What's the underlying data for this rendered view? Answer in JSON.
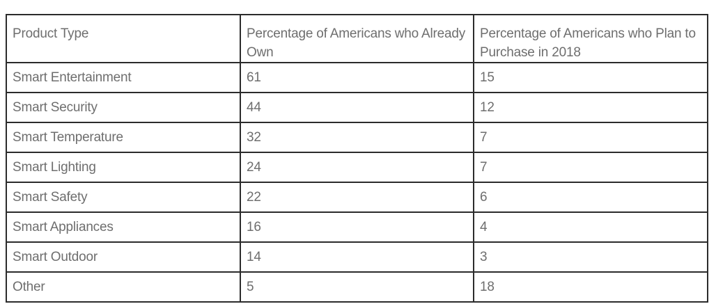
{
  "table": {
    "headers": [
      "Product Type",
      "Percentage of Americans who Already Own",
      "Percentage of Americans who Plan to Purchase in 2018"
    ],
    "rows": [
      {
        "product": "Smart Entertainment",
        "own": "61",
        "plan": "15"
      },
      {
        "product": "Smart Security",
        "own": "44",
        "plan": "12"
      },
      {
        "product": "Smart Temperature",
        "own": "32",
        "plan": "7"
      },
      {
        "product": "Smart Lighting",
        "own": "24",
        "plan": "7"
      },
      {
        "product": "Smart Safety",
        "own": "22",
        "plan": "6"
      },
      {
        "product": "Smart Appliances",
        "own": "16",
        "plan": "4"
      },
      {
        "product": "Smart Outdoor",
        "own": "14",
        "plan": "3"
      },
      {
        "product": "Other",
        "own": "5",
        "plan": "18"
      }
    ]
  },
  "colors": {
    "text": "#6e6e6e",
    "border": "#2b2b2b",
    "background": "#ffffff"
  }
}
